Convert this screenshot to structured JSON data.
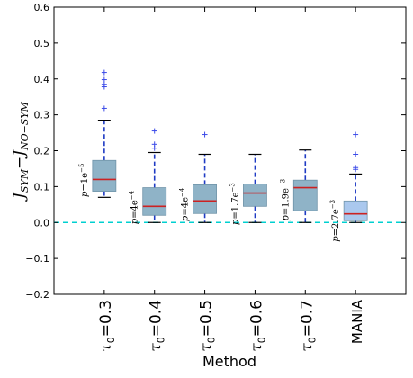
{
  "chart_data": {
    "type": "box",
    "title": "",
    "xlabel": "Method",
    "ylabel": "J_SYM − J_NO-SYM",
    "ylabel_parts": {
      "base": "J",
      "sub1": "SYM",
      "minus": "−",
      "sub2": "NO−SYM"
    },
    "ylim": [
      -0.2,
      0.6
    ],
    "yticks": [
      "−0.2",
      "−0.1",
      "0.0",
      "0.1",
      "0.2",
      "0.3",
      "0.4",
      "0.5",
      "0.6"
    ],
    "ytick_values": [
      -0.2,
      -0.1,
      0.0,
      0.1,
      0.2,
      0.3,
      0.4,
      0.5,
      0.6
    ],
    "reference_line": {
      "y": 0.0,
      "style": "dashed",
      "color": "#00d0d0"
    },
    "categories": [
      "τ₀ = 0.3",
      "τ₀ = 0.4",
      "τ₀ = 0.5",
      "τ₀ = 0.6",
      "τ₀ = 0.7",
      "MANIA"
    ],
    "category_parts": [
      {
        "sym": "τ",
        "sub": "0",
        "rest": "=0.3"
      },
      {
        "sym": "τ",
        "sub": "0",
        "rest": "=0.4"
      },
      {
        "sym": "τ",
        "sub": "0",
        "rest": "=0.5"
      },
      {
        "sym": "τ",
        "sub": "0",
        "rest": "=0.6"
      },
      {
        "sym": "τ",
        "sub": "0",
        "rest": "=0.7"
      },
      {
        "sym": "",
        "sub": "",
        "rest": "MANIA"
      }
    ],
    "boxes": [
      {
        "whisker_low": 0.07,
        "q1": 0.087,
        "median": 0.12,
        "q3": 0.173,
        "whisker_high": 0.285,
        "outliers": [
          0.318,
          0.378,
          0.385,
          0.398,
          0.418
        ],
        "box_color": "#8fb3c7",
        "p_label": {
          "base": "p",
          "eq": "=1e",
          "exp": "−5"
        }
      },
      {
        "whisker_low": 0.0,
        "q1": 0.02,
        "median": 0.045,
        "q3": 0.097,
        "whisker_high": 0.195,
        "outliers": [
          0.207,
          0.218,
          0.255
        ],
        "box_color": "#8fb3c7",
        "p_label": {
          "base": "p",
          "eq": "=4e",
          "exp": "−4"
        }
      },
      {
        "whisker_low": 0.0,
        "q1": 0.025,
        "median": 0.06,
        "q3": 0.105,
        "whisker_high": 0.19,
        "outliers": [
          0.245
        ],
        "box_color": "#8fb3c7",
        "p_label": {
          "base": "p",
          "eq": "=4e",
          "exp": "−4"
        }
      },
      {
        "whisker_low": 0.0,
        "q1": 0.045,
        "median": 0.082,
        "q3": 0.107,
        "whisker_high": 0.19,
        "outliers": [],
        "box_color": "#8fb3c7",
        "p_label": {
          "base": "p",
          "eq": "=1.7e",
          "exp": "−3"
        }
      },
      {
        "whisker_low": 0.0,
        "q1": 0.033,
        "median": 0.097,
        "q3": 0.118,
        "whisker_high": 0.202,
        "outliers": [],
        "box_color": "#8fb3c7",
        "p_label": {
          "base": "p",
          "eq": "=1.9e",
          "exp": "−3"
        }
      },
      {
        "whisker_low": 0.0,
        "q1": 0.005,
        "median": 0.024,
        "q3": 0.06,
        "whisker_high": 0.135,
        "outliers": [
          0.148,
          0.153,
          0.19,
          0.245
        ],
        "box_color": "#aac8ee",
        "p_label": {
          "base": "p",
          "eq": "=2.7e",
          "exp": "−3"
        }
      }
    ],
    "colors": {
      "median": "#cc2222",
      "whisker": "#1f3bc4",
      "outlier": "#3b4ae8",
      "cap": "#000000",
      "axis": "#000000"
    },
    "grid": false,
    "legend": "none"
  }
}
